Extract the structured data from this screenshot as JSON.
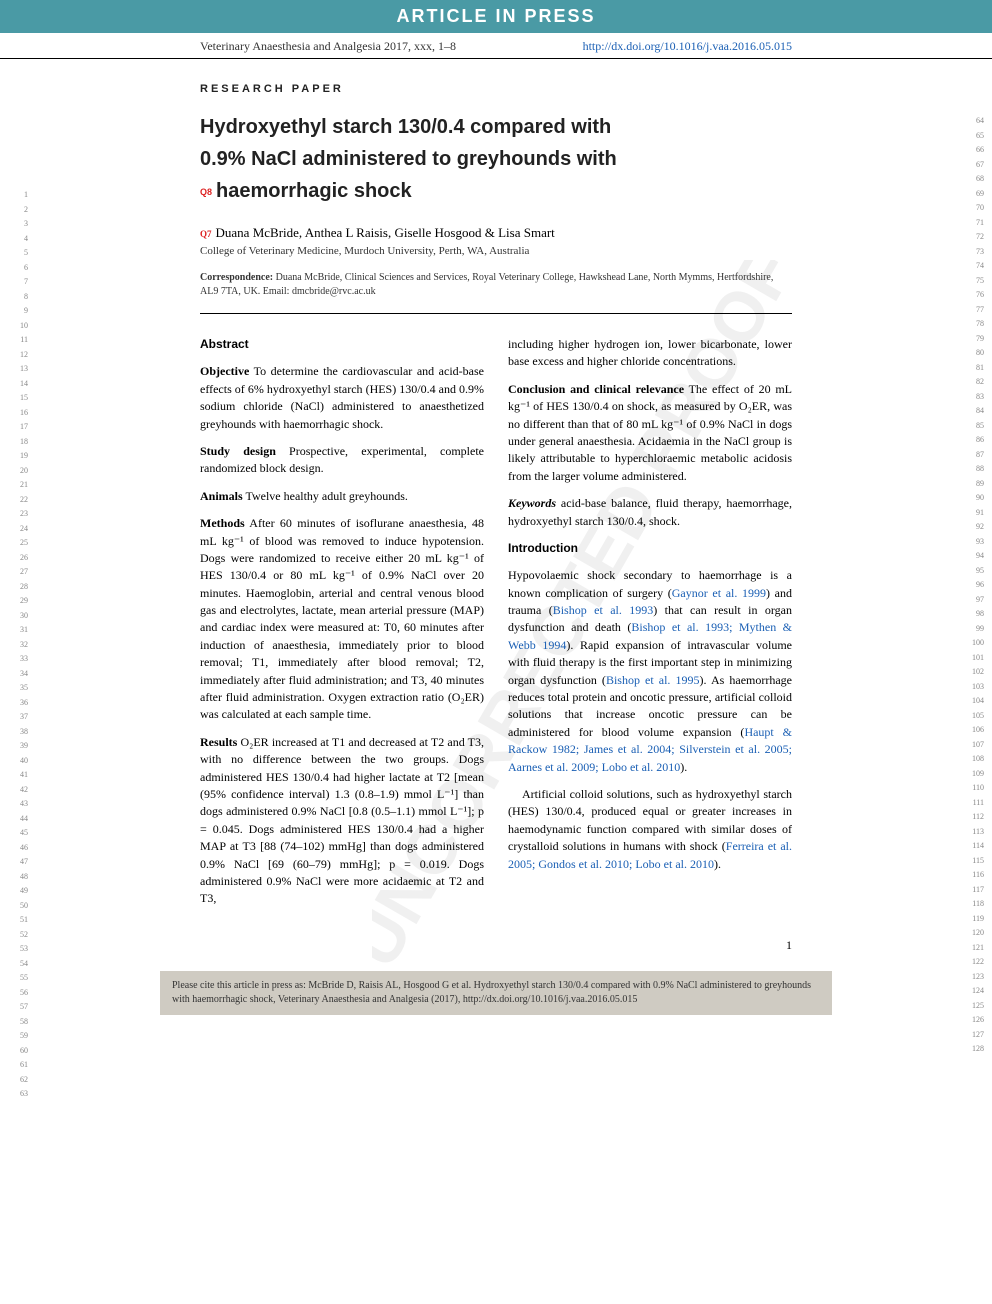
{
  "banner": "ARTICLE IN PRESS",
  "header": {
    "journal": "Veterinary Anaesthesia and Analgesia 2017, xxx, 1–8",
    "doi": "http://dx.doi.org/10.1016/j.vaa.2016.05.015"
  },
  "paper_type": "RESEARCH PAPER",
  "query_markers": {
    "q7": "Q7",
    "q8": "Q8"
  },
  "title_l1": "Hydroxyethyl starch 130/0.4 compared with",
  "title_l2": "0.9% NaCl administered to greyhounds with",
  "title_l3": "haemorrhagic shock",
  "authors": "Duana McBride, Anthea L Raisis, Giselle Hosgood & Lisa Smart",
  "affiliation": "College of Veterinary Medicine, Murdoch University, Perth, WA, Australia",
  "correspondence": {
    "label": "Correspondence:",
    "text": " Duana McBride, Clinical Sciences and Services, Royal Veterinary College, Hawkshead Lane, North Mymms, Hertfordshire, AL9 7TA, UK. Email: dmcbride@rvc.ac.uk"
  },
  "abstract": {
    "heading": "Abstract",
    "objective": {
      "head": "Objective",
      "body": " To determine the cardiovascular and acid-base effects of 6% hydroxyethyl starch (HES) 130/0.4 and 0.9% sodium chloride (NaCl) administered to anaesthetized greyhounds with haemorrhagic shock."
    },
    "design": {
      "head": "Study design",
      "body": " Prospective, experimental, complete randomized block design."
    },
    "animals": {
      "head": "Animals",
      "body": " Twelve healthy adult greyhounds."
    },
    "methods": {
      "head": "Methods",
      "body": " After 60 minutes of isoflurane anaesthesia, 48 mL kg⁻¹ of blood was removed to induce hypotension. Dogs were randomized to receive either 20 mL kg⁻¹ of HES 130/0.4 or 80 mL kg⁻¹ of 0.9% NaCl over 20 minutes. Haemoglobin, arterial and central venous blood gas and electrolytes, lactate, mean arterial pressure (MAP) and cardiac index were measured at: T0, 60 minutes after induction of anaesthesia, immediately prior to blood removal; T1, immediately after blood removal; T2, immediately after fluid administration; and T3, 40 minutes after fluid administration. Oxygen extraction ratio (O₂ER) was calculated at each sample time."
    },
    "results": {
      "head": "Results",
      "body": " O₂ER increased at T1 and decreased at T2 and T3, with no difference between the two groups. Dogs administered HES 130/0.4 had higher lactate at T2 [mean (95% confidence interval) 1.3 (0.8–1.9) mmol L⁻¹] than dogs administered 0.9% NaCl [0.8 (0.5–1.1) mmol L⁻¹]; p = 0.045. Dogs administered HES 130/0.4 had a higher MAP at T3 [88 (74–102) mmHg] than dogs administered 0.9% NaCl [69 (60–79) mmHg]; p = 0.019. Dogs administered 0.9% NaCl were more acidaemic at T2 and T3,"
    },
    "results_cont": "including higher hydrogen ion, lower bicarbonate, lower base excess and higher chloride concentrations.",
    "conclusion": {
      "head": "Conclusion and clinical relevance",
      "body": " The effect of 20 mL kg⁻¹ of HES 130/0.4 on shock, as measured by O₂ER, was no different than that of 80 mL kg⁻¹ of 0.9% NaCl in dogs under general anaesthesia. Acidaemia in the NaCl group is likely attributable to hyperchloraemic metabolic acidosis from the larger volume administered."
    },
    "keywords": {
      "label": "Keywords",
      "body": " acid-base balance, fluid therapy, haemorrhage, hydroxyethyl starch 130/0.4, shock."
    }
  },
  "intro": {
    "heading": "Introduction",
    "p1_a": "Hypovolaemic shock secondary to haemorrhage is a known complication of surgery (",
    "c1": "Gaynor et al. 1999",
    "p1_b": ") and trauma (",
    "c2": "Bishop et al. 1993",
    "p1_c": ") that can result in organ dysfunction and death (",
    "c3": "Bishop et al. 1993; Mythen & Webb 1994",
    "p1_d": "). Rapid expansion of intravascular volume with fluid therapy is the first important step in minimizing organ dysfunction (",
    "c4": "Bishop et al. 1995",
    "p1_e": "). As haemorrhage reduces total protein and oncotic pressure, artificial colloid solutions that increase oncotic pressure can be administered for blood volume expansion (",
    "c5": "Haupt & Rackow 1982; James et al. 2004; Silverstein et al. 2005; Aarnes et al. 2009; Lobo et al. 2010",
    "p1_f": ").",
    "p2_a": "Artificial colloid solutions, such as hydroxyethyl starch (HES) 130/0.4, produced equal or greater increases in haemodynamic function compared with similar doses of crystalloid solutions in humans with shock (",
    "c6": "Ferreira et al. 2005; Gondos et al. 2010; Lobo et al. 2010",
    "p2_b": ")."
  },
  "page_number": "1",
  "footer": {
    "text": "Please cite this article in press as: McBride D, Raisis AL, Hosgood G et al. Hydroxyethyl starch 130/0.4 compared with 0.9% NaCl administered to greyhounds with haemorrhagic shock, Veterinary Anaesthesia and Analgesia (2017), http://dx.doi.org/10.1016/j.vaa.2016.05.015"
  },
  "line_numbers": {
    "left_start": 1,
    "left_end": 63,
    "right_start": 64,
    "right_end": 128
  },
  "watermark": "UNCORRECTED PROOF",
  "colors": {
    "banner_bg": "#4a9aa5",
    "link": "#1a5fb4",
    "query": "#d22",
    "footer_bg": "#cfcbc2"
  }
}
